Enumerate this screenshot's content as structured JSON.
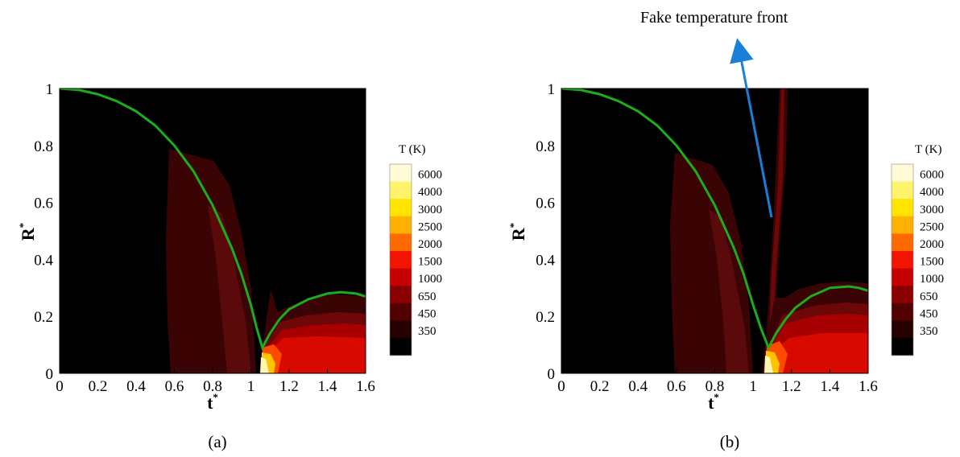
{
  "chart_data": [
    {
      "type": "heatmap",
      "panel_label": "(a)",
      "xlabel": "t",
      "xlabel_sup": "*",
      "ylabel": "R",
      "ylabel_sup": "*",
      "xlim": [
        0,
        1.6
      ],
      "ylim": [
        0,
        1
      ],
      "x_ticks": [
        "0",
        "0.2",
        "0.4",
        "0.6",
        "0.8",
        "1",
        "1.2",
        "1.4",
        "1.6"
      ],
      "y_ticks": [
        "0",
        "0.2",
        "0.4",
        "0.6",
        "0.8",
        "1"
      ],
      "colorbar": {
        "title": "T (K)",
        "levels": [
          6000,
          4000,
          3000,
          2500,
          2000,
          1500,
          1000,
          650,
          450,
          350
        ],
        "colors": [
          "#fffbd6",
          "#fff36b",
          "#ffe400",
          "#ffb000",
          "#ff6a00",
          "#f21400",
          "#c40000",
          "#8a0000",
          "#520000",
          "#260000",
          "#000000"
        ]
      },
      "bubble_radius_curve": {
        "color": "#1cad1c",
        "x": [
          0,
          0.1,
          0.2,
          0.3,
          0.4,
          0.5,
          0.6,
          0.7,
          0.8,
          0.9,
          0.95,
          1.0,
          1.03,
          1.06,
          1.1,
          1.15,
          1.2,
          1.3,
          1.4,
          1.47,
          1.55,
          1.6
        ],
        "y": [
          1.0,
          0.995,
          0.98,
          0.955,
          0.92,
          0.87,
          0.8,
          0.71,
          0.59,
          0.44,
          0.35,
          0.24,
          0.16,
          0.09,
          0.14,
          0.19,
          0.225,
          0.26,
          0.28,
          0.285,
          0.28,
          0.27
        ]
      }
    },
    {
      "type": "heatmap",
      "panel_label": "(b)",
      "xlabel": "t",
      "xlabel_sup": "*",
      "ylabel": "R",
      "ylabel_sup": "*",
      "xlim": [
        0,
        1.6
      ],
      "ylim": [
        0,
        1
      ],
      "x_ticks": [
        "0",
        "0.2",
        "0.4",
        "0.6",
        "0.8",
        "1",
        "1.2",
        "1.4",
        "1.6"
      ],
      "y_ticks": [
        "0",
        "0.2",
        "0.4",
        "0.6",
        "0.8",
        "1"
      ],
      "annotation": "Fake temperature front",
      "colorbar": {
        "title": "T (K)",
        "levels": [
          6000,
          4000,
          3000,
          2500,
          2000,
          1500,
          1000,
          650,
          450,
          350
        ],
        "colors": [
          "#fffbd6",
          "#fff36b",
          "#ffe400",
          "#ffb000",
          "#ff6a00",
          "#f21400",
          "#c40000",
          "#8a0000",
          "#520000",
          "#260000",
          "#000000"
        ]
      },
      "bubble_radius_curve": {
        "color": "#1cad1c",
        "x": [
          0,
          0.1,
          0.2,
          0.3,
          0.4,
          0.5,
          0.6,
          0.7,
          0.8,
          0.9,
          0.95,
          1.0,
          1.04,
          1.08,
          1.12,
          1.17,
          1.22,
          1.3,
          1.4,
          1.5,
          1.55,
          1.6
        ],
        "y": [
          1.0,
          0.995,
          0.98,
          0.955,
          0.92,
          0.87,
          0.8,
          0.71,
          0.59,
          0.44,
          0.35,
          0.24,
          0.16,
          0.09,
          0.14,
          0.19,
          0.23,
          0.27,
          0.3,
          0.305,
          0.3,
          0.29
        ]
      }
    }
  ]
}
